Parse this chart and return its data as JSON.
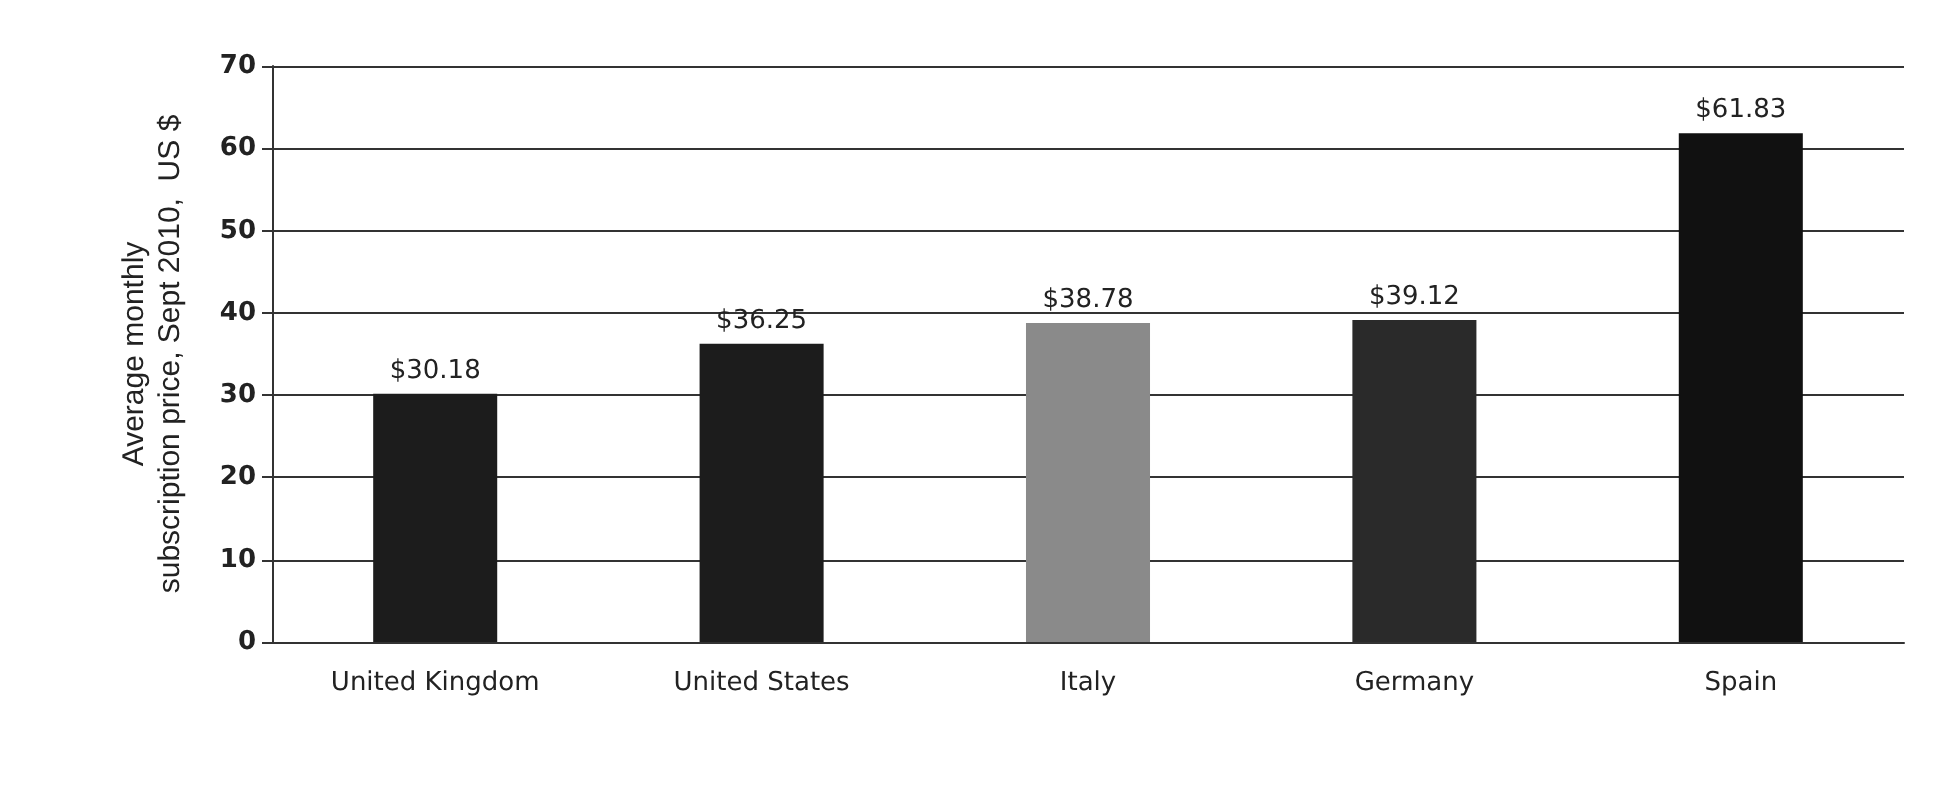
{
  "chart_data": {
    "type": "bar",
    "ylabel": "Average monthly\nsubscription price, Sept 2010,  US $",
    "categories": [
      "United Kingdom",
      "United States",
      "Italy",
      "Germany",
      "Spain"
    ],
    "values": [
      30.18,
      36.25,
      38.78,
      39.12,
      61.83
    ],
    "colors": [
      "#1c1c1c",
      "#1c1c1c",
      "#8a8a8a",
      "#2a2a2a",
      "#111111"
    ],
    "value_labels": [
      "$30.18",
      "$36.25",
      "$38.78",
      "$39.12",
      "$61.83"
    ],
    "ylim": [
      0,
      70
    ],
    "yticks": [
      0,
      10,
      20,
      30,
      40,
      50,
      60,
      70
    ],
    "grid": "y"
  }
}
